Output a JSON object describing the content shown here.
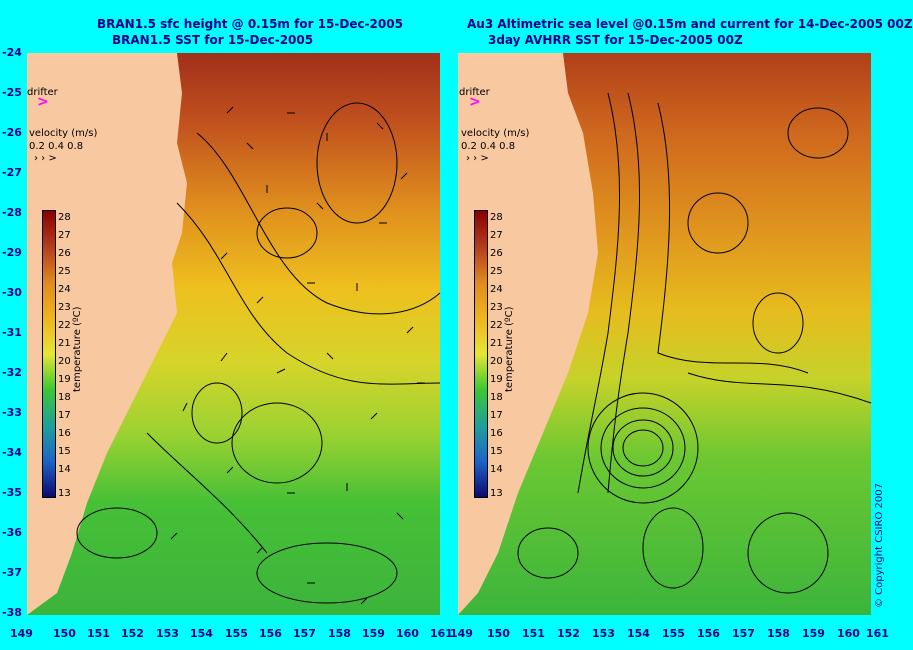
{
  "left_title": {
    "line1": "BRAN1.5 sfc height @ 0.15m for 15-Dec-2005",
    "line2": "BRAN1.5 SST for 15-Dec-2005"
  },
  "right_title": {
    "line1": "Au3 Altimetric sea level  @0.15m and current for 14-Dec-2005 00Z",
    "line2": "3day AVHRR SST for 15-Dec-2005 00Z"
  },
  "drifter_label": "drifter",
  "velocity": {
    "label": "velocity (m/s)",
    "scale": "0.2 0.4 0.8"
  },
  "colorbar": {
    "label": "temperature (ºC)",
    "ticks": [
      "28",
      "27",
      "26",
      "25",
      "24",
      "23",
      "22",
      "21",
      "20",
      "19",
      "18",
      "17",
      "16",
      "15",
      "14",
      "13"
    ],
    "colors": [
      "#8b0000",
      "#a52a2a",
      "#c85a1e",
      "#e08a1e",
      "#f0b41e",
      "#f5d21e",
      "#e6e632",
      "#b4dc32",
      "#3cc832",
      "#28b464",
      "#1ea09b",
      "#1e8cc8",
      "#1e64c8",
      "#1e3cb4",
      "#1e1e96",
      "#0a0a6e"
    ]
  },
  "lat_ticks": [
    "-24",
    "-25",
    "-26",
    "-27",
    "-28",
    "-29",
    "-30",
    "-31",
    "-32",
    "-33",
    "-34",
    "-35",
    "-36",
    "-37",
    "-38"
  ],
  "lon_ticks": [
    "149",
    "150",
    "151",
    "152",
    "153",
    "154",
    "155",
    "156",
    "157",
    "158",
    "159",
    "160",
    "161"
  ],
  "copyright": "© Copyright CSIRO 2007",
  "colors": {
    "background": "#00ffff",
    "land": "#f8c8a0",
    "text": "#00008b",
    "drifter": "#ff00ff"
  }
}
